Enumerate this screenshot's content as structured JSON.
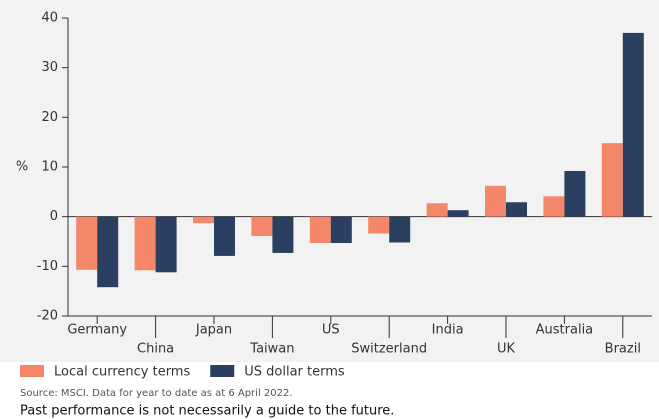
{
  "chart_data": {
    "type": "bar",
    "categories": [
      "Germany",
      "China",
      "Japan",
      "Taiwan",
      "US",
      "Switzerland",
      "India",
      "UK",
      "Australia",
      "Brazil"
    ],
    "series": [
      {
        "name": "Local currency terms",
        "color": "#f4876a",
        "values": [
          -10.7,
          -10.8,
          -1.3,
          -3.9,
          -5.3,
          -3.4,
          2.7,
          6.2,
          4.1,
          14.8
        ]
      },
      {
        "name": "US dollar terms",
        "color": "#2b3f60",
        "values": [
          -14.2,
          -11.2,
          -7.9,
          -7.3,
          -5.3,
          -5.2,
          1.3,
          2.9,
          9.2,
          37.0
        ]
      }
    ],
    "ylabel": "%",
    "ylim": [
      -20,
      40
    ],
    "yticks": [
      -20,
      -10,
      0,
      10,
      20,
      30,
      40
    ],
    "source": "Source: MSCI. Data for year to date as at 6 April 2022.",
    "footnote": "Past performance is not necessarily a guide to the future."
  }
}
